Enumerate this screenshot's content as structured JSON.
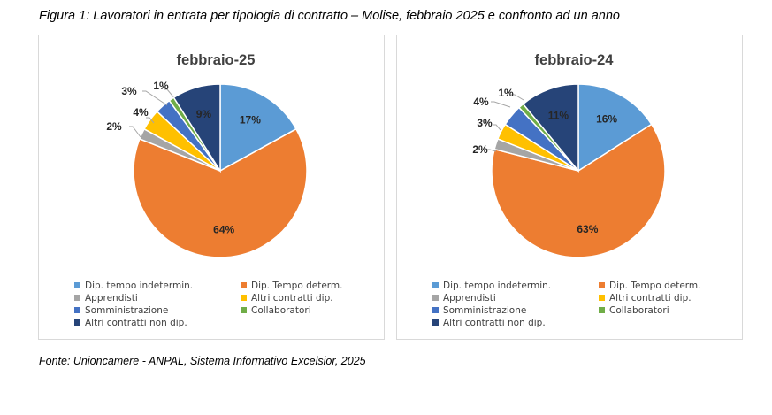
{
  "figure_caption": "Figura 1: Lavoratori in entrata per tipologia di contratto – Molise, febbraio 2025 e confronto ad un anno",
  "source_note": "Fonte: Unioncamere - ANPAL, Sistema Informativo Excelsior, 2025",
  "colors": {
    "dip_tempo_indetermin": "#5B9BD5",
    "dip_tempo_determ": "#ED7D31",
    "apprendisti": "#A5A5A5",
    "altri_contratti_dip": "#FFC000",
    "somministrazione": "#4472C4",
    "collaboratori": "#70AD47",
    "altri_contratti_non_dip": "#264478"
  },
  "chart_data": [
    {
      "type": "pie",
      "title": "febbraio-25",
      "categories": [
        "Dip. tempo indetermin.",
        "Dip. Tempo determ.",
        "Apprendisti",
        "Altri contratti dip.",
        "Somministrazione",
        "Collaboratori",
        "Altri contratti non dip."
      ],
      "values": [
        17,
        64,
        2,
        4,
        3,
        1,
        9
      ],
      "data_labels": [
        "17%",
        "64%",
        "2%",
        "4%",
        "3%",
        "1%",
        "9%"
      ],
      "legend_position": "bottom"
    },
    {
      "type": "pie",
      "title": "febbraio-24",
      "categories": [
        "Dip. tempo indetermin.",
        "Dip. Tempo determ.",
        "Apprendisti",
        "Altri contratti dip.",
        "Somministrazione",
        "Collaboratori",
        "Altri contratti non dip."
      ],
      "values": [
        16,
        63,
        2,
        3,
        4,
        1,
        11
      ],
      "data_labels": [
        "16%",
        "63%",
        "2%",
        "3%",
        "4%",
        "1%",
        "11%"
      ],
      "legend_position": "bottom"
    }
  ]
}
